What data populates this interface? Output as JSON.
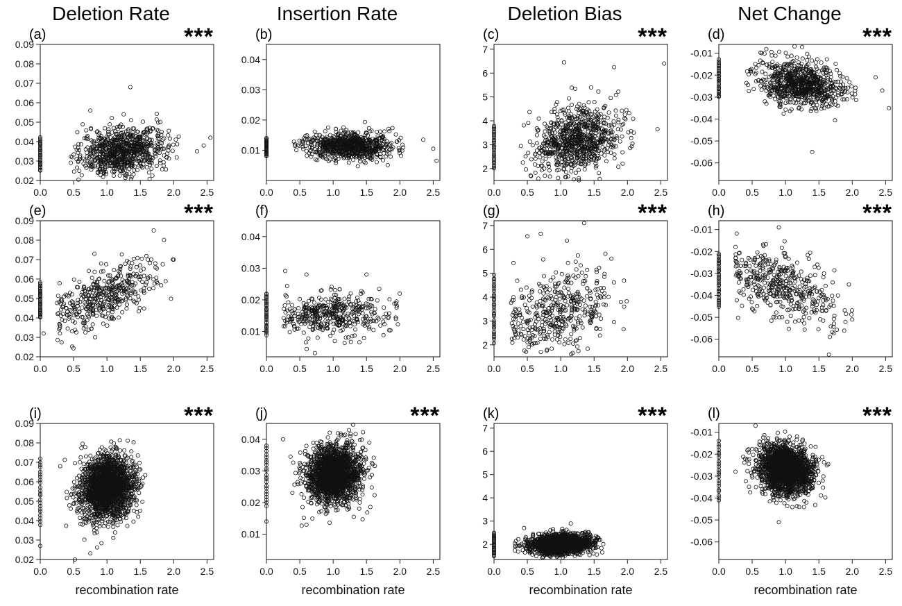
{
  "columns": [
    "Deletion Rate",
    "Insertion Rate",
    "Deletion Bias",
    "Net Change"
  ],
  "panels": [
    {
      "label": "(a)",
      "sig": "***"
    },
    {
      "label": "(b)",
      "sig": ""
    },
    {
      "label": "(c)",
      "sig": "***"
    },
    {
      "label": "(d)",
      "sig": "***"
    },
    {
      "label": "(e)",
      "sig": "***"
    },
    {
      "label": "(f)",
      "sig": ""
    },
    {
      "label": "(g)",
      "sig": "***"
    },
    {
      "label": "(h)",
      "sig": "***"
    },
    {
      "label": "(i)",
      "sig": "***"
    },
    {
      "label": "(j)",
      "sig": "***"
    },
    {
      "label": "(k)",
      "sig": "***"
    },
    {
      "label": "(l)",
      "sig": "***"
    }
  ],
  "xlabel": "recombination rate",
  "chart_data": [
    {
      "type": "scatter",
      "panel": "(a)",
      "title": "Deletion Rate",
      "xlabel": "",
      "ylabel": "",
      "xlim": [
        0,
        2.6
      ],
      "ylim": [
        0.02,
        0.09
      ],
      "xticks": [
        "0.0",
        "0.5",
        "1.0",
        "1.5",
        "2.0",
        "2.5"
      ],
      "yticks": [
        "0.02",
        "0.03",
        "0.04",
        "0.05",
        "0.06",
        "0.07",
        "0.08",
        "0.09"
      ],
      "zero_cluster": {
        "x": 0.0,
        "n": 25,
        "ymin": 0.025,
        "ymax": 0.042
      },
      "cloud": {
        "n": 800,
        "x_mean": 1.25,
        "x_sd": 0.32,
        "y_mean": 0.035,
        "y_sd": 0.006,
        "slope": 0.004,
        "xmin": 0.45,
        "xmax": 2.1
      },
      "outliers": [
        [
          2.35,
          0.035
        ],
        [
          2.45,
          0.038
        ],
        [
          2.55,
          0.042
        ],
        [
          1.35,
          0.068
        ],
        [
          0.75,
          0.056
        ]
      ]
    },
    {
      "type": "scatter",
      "panel": "(b)",
      "title": "Insertion Rate",
      "xlabel": "",
      "ylabel": "",
      "xlim": [
        0,
        2.6
      ],
      "ylim": [
        0,
        0.045
      ],
      "xticks": [
        "0.0",
        "0.5",
        "1.0",
        "1.5",
        "2.0",
        "2.5"
      ],
      "yticks": [
        "0.01",
        "0.02",
        "0.03",
        "0.04"
      ],
      "zero_cluster": {
        "x": 0.0,
        "n": 25,
        "ymin": 0.008,
        "ymax": 0.014
      },
      "cloud": {
        "n": 800,
        "x_mean": 1.25,
        "x_sd": 0.32,
        "y_mean": 0.0115,
        "y_sd": 0.0022,
        "slope": 0.0,
        "xmin": 0.4,
        "xmax": 2.1
      },
      "outliers": [
        [
          2.35,
          0.0135
        ],
        [
          2.5,
          0.0105
        ],
        [
          2.55,
          0.0065
        ]
      ]
    },
    {
      "type": "scatter",
      "panel": "(c)",
      "title": "Deletion Bias",
      "xlabel": "",
      "ylabel": "",
      "xlim": [
        0,
        2.6
      ],
      "ylim": [
        1.5,
        7.2
      ],
      "xticks": [
        "0.0",
        "0.5",
        "1.0",
        "1.5",
        "2.0",
        "2.5"
      ],
      "yticks": [
        "2",
        "3",
        "4",
        "5",
        "6",
        "7"
      ],
      "zero_cluster": {
        "x": 0.0,
        "n": 25,
        "ymin": 2.0,
        "ymax": 3.8
      },
      "cloud": {
        "n": 800,
        "x_mean": 1.25,
        "x_sd": 0.32,
        "y_mean": 3.2,
        "y_sd": 0.7,
        "slope": 0.5,
        "xmin": 0.4,
        "xmax": 2.1
      },
      "outliers": [
        [
          2.45,
          3.65
        ],
        [
          2.55,
          6.4
        ],
        [
          1.05,
          6.45
        ],
        [
          1.8,
          6.25
        ]
      ]
    },
    {
      "type": "scatter",
      "panel": "(d)",
      "title": "Net Change",
      "xlabel": "",
      "ylabel": "",
      "xlim": [
        0,
        2.6
      ],
      "ylim": [
        -0.068,
        -0.006
      ],
      "xticks": [
        "0.0",
        "0.5",
        "1.0",
        "1.5",
        "2.0",
        "2.5"
      ],
      "yticks": [
        "-0.01",
        "-0.02",
        "-0.03",
        "-0.04",
        "-0.05",
        "-0.06"
      ],
      "zero_cluster": {
        "x": 0.0,
        "n": 25,
        "ymin": -0.03,
        "ymax": -0.013
      },
      "cloud": {
        "n": 800,
        "x_mean": 1.25,
        "x_sd": 0.32,
        "y_mean": -0.024,
        "y_sd": 0.005,
        "slope": -0.004,
        "xmin": 0.4,
        "xmax": 2.1
      },
      "outliers": [
        [
          2.35,
          -0.021
        ],
        [
          2.45,
          -0.027
        ],
        [
          2.55,
          -0.035
        ],
        [
          1.4,
          -0.055
        ]
      ]
    },
    {
      "type": "scatter",
      "panel": "(e)",
      "title": "",
      "xlabel": "",
      "ylabel": "",
      "xlim": [
        0,
        2.6
      ],
      "ylim": [
        0.02,
        0.09
      ],
      "xticks": [
        "0.0",
        "0.5",
        "1.0",
        "1.5",
        "2.0",
        "2.5"
      ],
      "yticks": [
        "0.02",
        "0.03",
        "0.04",
        "0.05",
        "0.06",
        "0.07",
        "0.08",
        "0.09"
      ],
      "zero_cluster": {
        "x": 0.0,
        "n": 30,
        "ymin": 0.04,
        "ymax": 0.058
      },
      "cloud": {
        "n": 420,
        "x_mean": 0.95,
        "x_sd": 0.42,
        "y_mean": 0.051,
        "y_sd": 0.007,
        "slope": 0.014,
        "xmin": 0.25,
        "xmax": 2.0
      },
      "outliers": [
        [
          1.55,
          0.091
        ],
        [
          1.7,
          0.085
        ],
        [
          0.05,
          0.032
        ],
        [
          2.0,
          0.07
        ]
      ]
    },
    {
      "type": "scatter",
      "panel": "(f)",
      "title": "",
      "xlabel": "",
      "ylabel": "",
      "xlim": [
        0,
        2.6
      ],
      "ylim": [
        0.002,
        0.045
      ],
      "xticks": [
        "0.0",
        "0.5",
        "1.0",
        "1.5",
        "2.0",
        "2.5"
      ],
      "yticks": [
        "0.01",
        "0.02",
        "0.03",
        "0.04"
      ],
      "zero_cluster": {
        "x": 0.0,
        "n": 30,
        "ymin": 0.009,
        "ymax": 0.022
      },
      "cloud": {
        "n": 420,
        "x_mean": 0.95,
        "x_sd": 0.42,
        "y_mean": 0.0155,
        "y_sd": 0.0035,
        "slope": 0.0,
        "xmin": 0.25,
        "xmax": 2.0
      },
      "outliers": [
        [
          0.6,
          0.028
        ],
        [
          1.5,
          0.028
        ],
        [
          1.95,
          0.0195
        ]
      ]
    },
    {
      "type": "scatter",
      "panel": "(g)",
      "title": "",
      "xlabel": "",
      "ylabel": "",
      "xlim": [
        0,
        2.6
      ],
      "ylim": [
        1.5,
        7.2
      ],
      "xticks": [
        "0.0",
        "0.5",
        "1.0",
        "1.5",
        "2.0",
        "2.5"
      ],
      "yticks": [
        "2",
        "3",
        "4",
        "5",
        "6",
        "7"
      ],
      "zero_cluster": {
        "x": 0.0,
        "n": 30,
        "ymin": 2.1,
        "ymax": 4.9
      },
      "cloud": {
        "n": 420,
        "x_mean": 0.95,
        "x_sd": 0.42,
        "y_mean": 3.4,
        "y_sd": 0.85,
        "slope": 0.8,
        "xmin": 0.25,
        "xmax": 2.0
      },
      "outliers": [
        [
          1.35,
          7.1
        ],
        [
          0.7,
          6.65
        ],
        [
          0.5,
          6.55
        ],
        [
          1.95,
          3.6
        ]
      ]
    },
    {
      "type": "scatter",
      "panel": "(h)",
      "title": "",
      "xlabel": "",
      "ylabel": "",
      "xlim": [
        0,
        2.6
      ],
      "ylim": [
        -0.068,
        -0.006
      ],
      "xticks": [
        "0.0",
        "0.5",
        "1.0",
        "1.5",
        "2.0",
        "2.5"
      ],
      "yticks": [
        "-0.01",
        "-0.02",
        "-0.03",
        "-0.04",
        "-0.05",
        "-0.06"
      ],
      "zero_cluster": {
        "x": 0.0,
        "n": 30,
        "ymin": -0.045,
        "ymax": -0.021
      },
      "cloud": {
        "n": 420,
        "x_mean": 0.95,
        "x_sd": 0.42,
        "y_mean": -0.036,
        "y_sd": 0.007,
        "slope": -0.011,
        "xmin": 0.25,
        "xmax": 2.0
      },
      "outliers": [
        [
          0.9,
          -0.009
        ],
        [
          1.65,
          -0.067
        ],
        [
          2.0,
          -0.051
        ],
        [
          1.95,
          -0.035
        ]
      ]
    },
    {
      "type": "scatter",
      "panel": "(i)",
      "title": "",
      "xlabel": "recombination rate",
      "ylabel": "",
      "xlim": [
        0,
        2.6
      ],
      "ylim": [
        0.02,
        0.09
      ],
      "xticks": [
        "0.0",
        "0.5",
        "1.0",
        "1.5",
        "2.0",
        "2.5"
      ],
      "yticks": [
        "0.02",
        "0.03",
        "0.04",
        "0.05",
        "0.06",
        "0.07",
        "0.08",
        "0.09"
      ],
      "zero_cluster": {
        "x": 0.0,
        "n": 22,
        "ymin": 0.038,
        "ymax": 0.072
      },
      "cloud": {
        "n": 1900,
        "x_mean": 1.0,
        "x_sd": 0.2,
        "y_mean": 0.057,
        "y_sd": 0.008,
        "slope": 0.004,
        "xmin": 0.35,
        "xmax": 1.65
      },
      "outliers": [
        [
          0.0,
          0.027
        ],
        [
          0.52,
          0.02
        ],
        [
          0.3,
          0.068
        ]
      ]
    },
    {
      "type": "scatter",
      "panel": "(j)",
      "title": "",
      "xlabel": "recombination rate",
      "ylabel": "",
      "xlim": [
        0,
        2.6
      ],
      "ylim": [
        0.002,
        0.045
      ],
      "xticks": [
        "0.0",
        "0.5",
        "1.0",
        "1.5",
        "2.0",
        "2.5"
      ],
      "yticks": [
        "0.01",
        "0.02",
        "0.03",
        "0.04"
      ],
      "zero_cluster": {
        "x": 0.0,
        "n": 22,
        "ymin": 0.019,
        "ymax": 0.038
      },
      "cloud": {
        "n": 1900,
        "x_mean": 1.0,
        "x_sd": 0.2,
        "y_mean": 0.029,
        "y_sd": 0.0045,
        "slope": 0.002,
        "xmin": 0.35,
        "xmax": 1.65
      },
      "outliers": [
        [
          0.0,
          0.014
        ],
        [
          0.6,
          0.013
        ],
        [
          0.25,
          0.04
        ]
      ]
    },
    {
      "type": "scatter",
      "panel": "(k)",
      "title": "",
      "xlabel": "recombination rate",
      "ylabel": "",
      "xlim": [
        0,
        2.6
      ],
      "ylim": [
        1.35,
        7.2
      ],
      "xticks": [
        "0.0",
        "0.5",
        "1.0",
        "1.5",
        "2.0",
        "2.5"
      ],
      "yticks": [
        "2",
        "3",
        "4",
        "5",
        "6",
        "7"
      ],
      "zero_cluster": {
        "x": 0.0,
        "n": 22,
        "ymin": 1.5,
        "ymax": 2.5
      },
      "cloud": {
        "n": 1900,
        "x_mean": 1.0,
        "x_sd": 0.22,
        "y_mean": 2.0,
        "y_sd": 0.2,
        "slope": 0.15,
        "xmin": 0.3,
        "xmax": 1.65
      },
      "outliers": [
        [
          0.45,
          2.7
        ],
        [
          1.15,
          2.9
        ]
      ]
    },
    {
      "type": "scatter",
      "panel": "(l)",
      "title": "",
      "xlabel": "recombination rate",
      "ylabel": "",
      "xlim": [
        0,
        2.6
      ],
      "ylim": [
        -0.068,
        -0.006
      ],
      "xticks": [
        "0.0",
        "0.5",
        "1.0",
        "1.5",
        "2.0",
        "2.5"
      ],
      "yticks": [
        "-0.01",
        "-0.02",
        "-0.03",
        "-0.04",
        "-0.05",
        "-0.06"
      ],
      "zero_cluster": {
        "x": 0.0,
        "n": 22,
        "ymin": -0.041,
        "ymax": -0.014
      },
      "cloud": {
        "n": 1900,
        "x_mean": 1.0,
        "x_sd": 0.2,
        "y_mean": -0.027,
        "y_sd": 0.0055,
        "slope": -0.003,
        "xmin": 0.35,
        "xmax": 1.65
      },
      "outliers": [
        [
          0.55,
          -0.007
        ],
        [
          0.9,
          -0.051
        ],
        [
          0.25,
          -0.028
        ]
      ]
    }
  ]
}
